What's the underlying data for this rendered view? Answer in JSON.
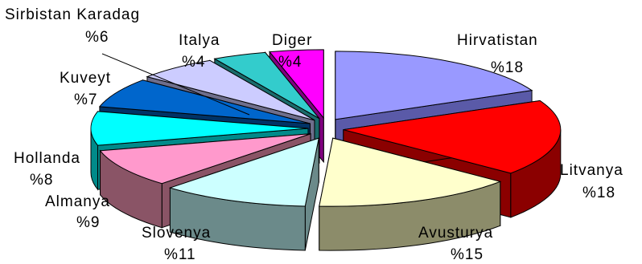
{
  "chart_data": {
    "type": "pie",
    "title": "",
    "style": "3d-exploded",
    "slices": [
      {
        "label": "Hirvatistan",
        "value_text": "%18",
        "value": 18,
        "color": "#9999FF",
        "side": "#5a5aa8"
      },
      {
        "label": "Litvanya",
        "value_text": "%18",
        "value": 18,
        "color": "#FF0000",
        "side": "#8b0000"
      },
      {
        "label": "Avusturya",
        "value_text": "%15",
        "value": 15,
        "color": "#FFFFCC",
        "side": "#8c8c6a"
      },
      {
        "label": "Slovenya",
        "value_text": "%11",
        "value": 11,
        "color": "#CCFFFF",
        "side": "#6b8a8a"
      },
      {
        "label": "Almanya",
        "value_text": "%9",
        "value": 9,
        "color": "#FF99CC",
        "side": "#8a5466"
      },
      {
        "label": "Hollanda",
        "value_text": "%8",
        "value": 8,
        "color": "#00FFFF",
        "side": "#008a8a"
      },
      {
        "label": "Kuveyt",
        "value_text": "%7",
        "value": 7,
        "color": "#0066CC",
        "side": "#003366"
      },
      {
        "label": "Sirbistan Karadag",
        "value_text": "%6",
        "value": 6,
        "color": "#CCCCFF",
        "side": "#6e6e8c"
      },
      {
        "label": "Italya",
        "value_text": "%4",
        "value": 4,
        "color": "#33CCCC",
        "side": "#1a6b6b"
      },
      {
        "label": "Diger",
        "value_text": "%4",
        "value": 4,
        "color": "#FF00FF",
        "side": "#800080"
      }
    ]
  }
}
